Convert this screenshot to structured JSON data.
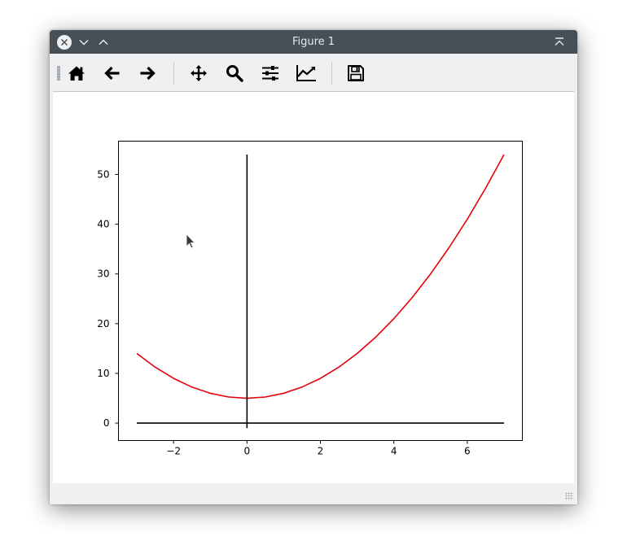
{
  "window": {
    "title": "Figure 1"
  },
  "titlebar_buttons": {
    "close": "close-icon",
    "minimize": "chevron-down-icon",
    "maximize": "chevron-up-icon",
    "keep_above": "keep-above-icon"
  },
  "toolbar": {
    "tools": [
      {
        "name": "home-icon",
        "action": "Home"
      },
      {
        "name": "back-arrow-icon",
        "action": "Back"
      },
      {
        "name": "forward-arrow-icon",
        "action": "Forward"
      },
      {
        "name": "pan-icon",
        "action": "Pan"
      },
      {
        "name": "zoom-icon",
        "action": "Zoom"
      },
      {
        "name": "subplots-icon",
        "action": "Subplots"
      },
      {
        "name": "customize-icon",
        "action": "Customize"
      },
      {
        "name": "save-icon",
        "action": "Save"
      }
    ]
  },
  "colors": {
    "titlebar": "#475057",
    "window_bg": "#eff0f1",
    "curve": "#e8000b",
    "axes": "#000000"
  },
  "chart_data": {
    "type": "line",
    "title": "",
    "xlabel": "",
    "ylabel": "",
    "xlim": [
      -3.5,
      7.5
    ],
    "ylim": [
      -3.5,
      56.7
    ],
    "xticks": [
      -2,
      0,
      2,
      4,
      6
    ],
    "xtick_labels": [
      "−2",
      "0",
      "2",
      "4",
      "6"
    ],
    "yticks": [
      0,
      10,
      20,
      30,
      40,
      50
    ],
    "ytick_labels": [
      "0",
      "10",
      "20",
      "30",
      "40",
      "50"
    ],
    "grid": false,
    "series": [
      {
        "color": "#e8000b",
        "function": "x^2 + 5",
        "x": [
          -3,
          -2.5,
          -2,
          -1.5,
          -1,
          -0.5,
          0,
          0.5,
          1,
          1.5,
          2,
          2.5,
          3,
          3.5,
          4,
          4.5,
          5,
          5.5,
          6,
          6.5,
          7
        ],
        "y": [
          14,
          11.25,
          9,
          7.25,
          6,
          5.25,
          5,
          5.25,
          6,
          7.25,
          9,
          11.25,
          14,
          17.25,
          21,
          25.25,
          30,
          35.25,
          41,
          47.25,
          54
        ]
      },
      {
        "color": "#000000",
        "x": [
          -3,
          7
        ],
        "y": [
          0,
          0
        ]
      },
      {
        "color": "#000000",
        "x": [
          0,
          0
        ],
        "y": [
          -1,
          54
        ]
      }
    ]
  }
}
